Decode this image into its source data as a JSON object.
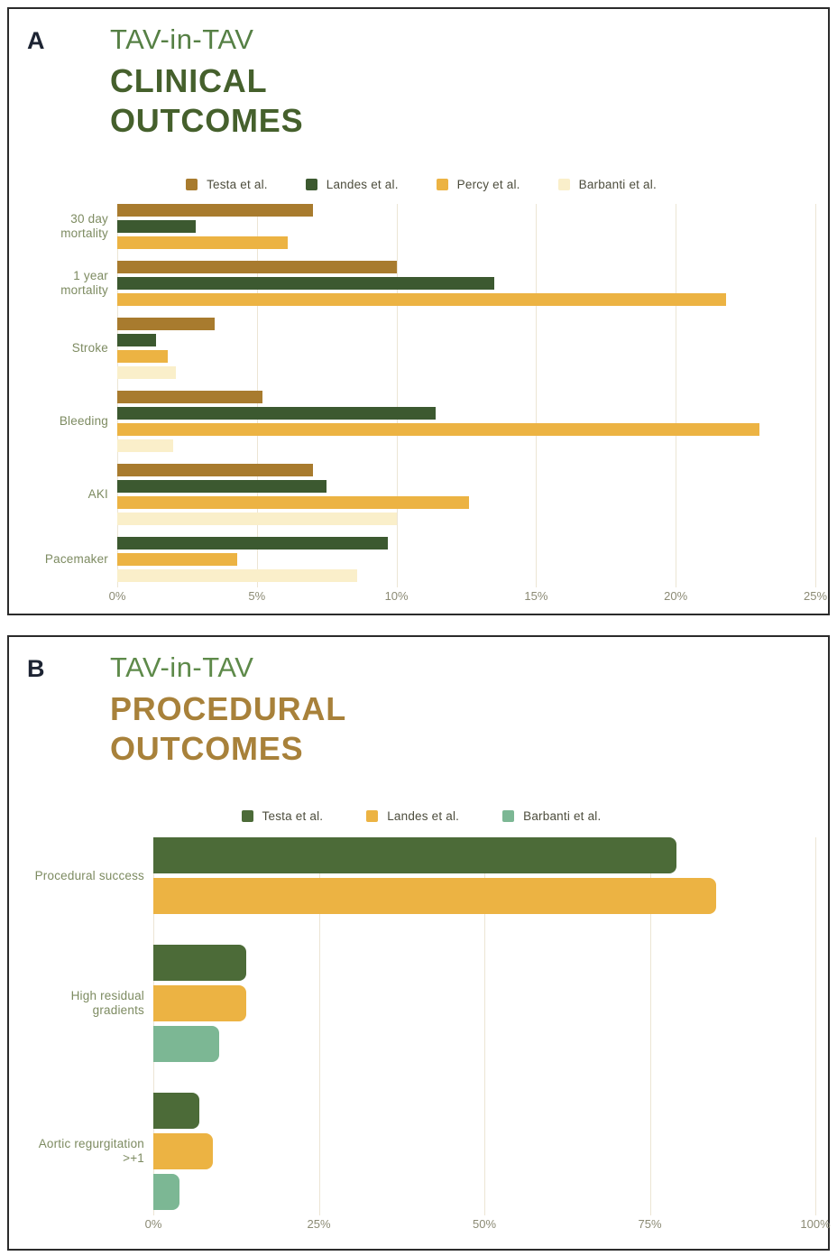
{
  "panels": [
    {
      "label": "A",
      "title_small": "TAV-in-TAV",
      "title_lines": [
        "CLINICAL",
        "OUTCOMES"
      ],
      "title_small_color": "#568045",
      "title_big_color": "#45602c"
    },
    {
      "label": "B",
      "title_small": "TAV-in-TAV",
      "title_lines": [
        "PROCEDURAL",
        "OUTCOMES"
      ],
      "title_small_color": "#5e8a4a",
      "title_big_color": "#a8813a"
    }
  ],
  "chart_data": [
    {
      "panel": "A",
      "type": "bar",
      "orientation": "horizontal",
      "title": "TAV-in-TAV CLINICAL OUTCOMES",
      "categories": [
        "30 day mortality",
        "1 year mortality",
        "Stroke",
        "Bleeding",
        "AKI",
        "Pacemaker"
      ],
      "series": [
        {
          "name": "Testa et al.",
          "color": "#a87b2e",
          "values": [
            7,
            10,
            3.5,
            5.2,
            7,
            null
          ]
        },
        {
          "name": "Landes et al.",
          "color": "#3c5930",
          "values": [
            2.8,
            13.5,
            1.4,
            11.4,
            7.5,
            9.7
          ]
        },
        {
          "name": "Percy et al.",
          "color": "#ecb343",
          "values": [
            6.1,
            21.8,
            1.8,
            23,
            12.6,
            4.3
          ]
        },
        {
          "name": "Barbanti et al.",
          "color": "#faefca",
          "values": [
            null,
            null,
            2.1,
            2,
            10,
            8.6
          ]
        }
      ],
      "unit": "%",
      "xlim": [
        0,
        25
      ],
      "x_ticks": [
        "0%",
        "5%",
        "10%",
        "15%",
        "20%",
        "25%"
      ],
      "grid": true,
      "legend_position": "top-center"
    },
    {
      "panel": "B",
      "type": "bar",
      "orientation": "horizontal",
      "title": "TAV-in-TAV PROCEDURAL OUTCOMES",
      "categories": [
        "Procedural success",
        "High residual gradients",
        "Aortic regurgitation >+1"
      ],
      "series": [
        {
          "name": "Testa et al.",
          "color": "#4c6b38",
          "values": [
            79,
            14,
            7
          ]
        },
        {
          "name": "Landes et al.",
          "color": "#ecb343",
          "values": [
            85,
            14,
            9
          ]
        },
        {
          "name": "Barbanti et al.",
          "color": "#7cb794",
          "values": [
            null,
            10,
            4
          ]
        }
      ],
      "unit": "%",
      "xlim": [
        0,
        100
      ],
      "x_ticks": [
        "0%",
        "25%",
        "50%",
        "75%",
        "100%"
      ],
      "grid": true,
      "legend_position": "top-center"
    }
  ]
}
